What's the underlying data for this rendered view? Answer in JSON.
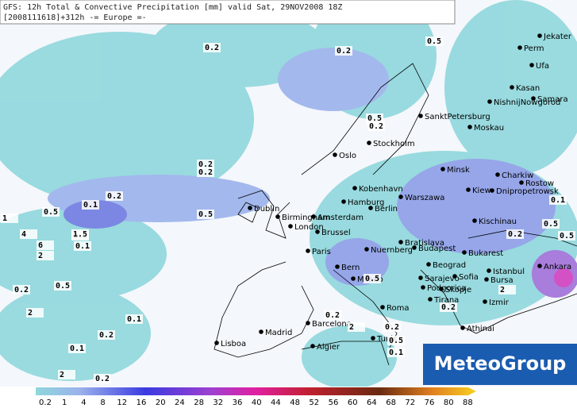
{
  "header": {
    "line1": "GFS: 12h Total & Convective Precipitation [mm] valid Sat, 29NOV2008 18Z",
    "line2": "[2008111618]+312h -= Europe =-"
  },
  "cities": [
    "Jekater",
    "Perm",
    "Ufa",
    "Kasan",
    "Samara",
    "NishnijNowgorod",
    "Moskau",
    "SanktPetersburg",
    "Oslo",
    "Stockholm",
    "Minsk",
    "Charkiw",
    "Rostow",
    "Kiew",
    "Dnipropetrowsk",
    "Warszawa",
    "Kobenhavn",
    "Hamburg",
    "Berlin",
    "Dublin",
    "Birmingham",
    "Amsterdam",
    "London",
    "Brussel",
    "Kischinau",
    "Paris",
    "Bratislava",
    "Budapest",
    "Nuernberg",
    "Bukarest",
    "Beograd",
    "Bern",
    "Milano",
    "Sarajevo",
    "Sofia",
    "Istanbul",
    "Bursa",
    "Ankara",
    "Podgorica",
    "Skopje",
    "Tirana",
    "Roma",
    "Izmir",
    "Athinai",
    "Madrid",
    "Barcelona",
    "Lisboa",
    "Algier",
    "Tunis"
  ],
  "contour_labels": [
    "0.2",
    "0.5",
    "0.2",
    "0.5",
    "0.2",
    "0.2",
    "0.2",
    "0.5",
    "0.5",
    "0.1",
    "0.2",
    "1",
    "0.5",
    "4",
    "1.5",
    "6",
    "0.1",
    "2",
    "0.2",
    "0.5",
    "0.1",
    "2",
    "0.2",
    "0.1",
    "0.2",
    "2",
    "0.2",
    "2",
    "0.2",
    "0.5",
    "0.1",
    "0.5",
    "0.2",
    "2",
    "0.5",
    "0.1",
    "0.5",
    "0.2"
  ],
  "legend": {
    "values": [
      0.2,
      1,
      4,
      8,
      12,
      16,
      20,
      24,
      28,
      32,
      36,
      40,
      44,
      48,
      52,
      56,
      60,
      64,
      68,
      72,
      76,
      80,
      88
    ]
  },
  "logo": "MeteoGroup"
}
